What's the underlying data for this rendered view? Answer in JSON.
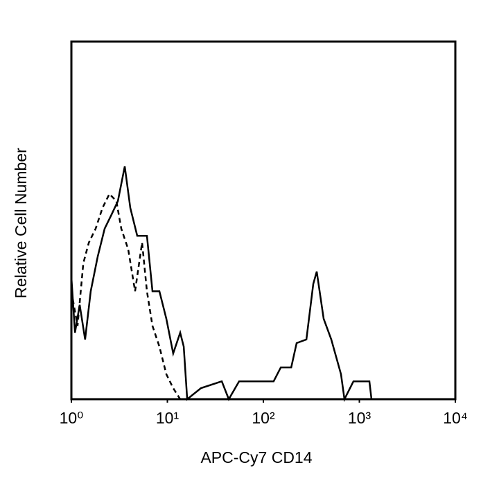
{
  "chart_data": {
    "type": "line",
    "xlabel": "APC-Cy7 CD14",
    "ylabel": "Relative Cell Number",
    "xscale": "log",
    "xlim": [
      1,
      10000
    ],
    "ylim": [
      0,
      100
    ],
    "xticks": [
      {
        "value": 1,
        "label": "10⁰"
      },
      {
        "value": 10,
        "label": "10¹"
      },
      {
        "value": 100,
        "label": "10²"
      },
      {
        "value": 1000,
        "label": "10³"
      },
      {
        "value": 10000,
        "label": "10⁴"
      }
    ],
    "grid": false,
    "series": [
      {
        "color": "#000000",
        "dashed": false,
        "x": [
          1,
          1.09,
          1.22,
          1.39,
          1.59,
          1.88,
          2.22,
          2.62,
          3.05,
          3.6,
          4.11,
          4.85,
          6.12,
          7.0,
          8.26,
          9.75,
          11.5,
          13.6,
          14.8,
          16.1,
          22.4,
          36.9,
          43.6,
          55.9,
          84.7,
          128,
          152,
          195,
          222,
          281,
          331,
          360,
          425,
          510,
          644,
          700,
          868,
          1273,
          1337
        ],
        "values": [
          34.1,
          18.6,
          26.4,
          16.7,
          30.2,
          39.9,
          47.7,
          51.6,
          55.4,
          65.1,
          53.5,
          45.7,
          45.7,
          30.2,
          30.2,
          22.5,
          12.8,
          18.6,
          14.7,
          0,
          3.1,
          5.0,
          0,
          5.0,
          5.0,
          5.0,
          8.9,
          8.9,
          15.7,
          16.7,
          32.2,
          35.7,
          22.5,
          16.7,
          7.0,
          0,
          5.0,
          5.0,
          0
        ]
      },
      {
        "color": "#000000",
        "dashed": true,
        "x": [
          1,
          1.16,
          1.33,
          1.52,
          1.79,
          2.11,
          2.49,
          2.94,
          3.31,
          3.91,
          4.61,
          5.45,
          6.12,
          7.0,
          8.26,
          9.75,
          11.5,
          13.6,
          26.4,
          10000
        ],
        "values": [
          30.2,
          20.5,
          38.0,
          43.8,
          47.7,
          53.5,
          57.4,
          55.4,
          47.7,
          41.9,
          30.2,
          43.8,
          30.2,
          20.5,
          14.7,
          7.0,
          3.1,
          0,
          0,
          0
        ]
      }
    ]
  }
}
